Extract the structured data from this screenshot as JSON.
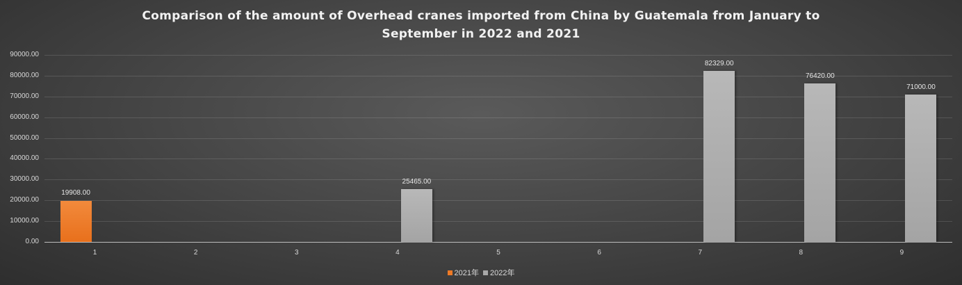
{
  "chart_data": {
    "type": "bar",
    "title": "Comparison of the amount of Overhead cranes imported from China by Guatemala from January to September in 2022 and 2021",
    "title_line1": "Comparison of the amount of Overhead cranes imported from China by Guatemala from January to",
    "title_line2": "September in 2022 and 2021",
    "categories": [
      "1",
      "2",
      "3",
      "4",
      "5",
      "6",
      "7",
      "8",
      "9"
    ],
    "series": [
      {
        "name": "2021年",
        "color": "#ee7a26",
        "values": [
          19908,
          null,
          null,
          null,
          null,
          null,
          null,
          null,
          null
        ]
      },
      {
        "name": "2022年",
        "color": "#a9a9a9",
        "values": [
          null,
          null,
          null,
          25465,
          null,
          null,
          82329,
          76420,
          71000
        ]
      }
    ],
    "data_labels": {
      "2021年": [
        "19908.00",
        "",
        "",
        "",
        "",
        "",
        "",
        "",
        ""
      ],
      "2022年": [
        "",
        "",
        "",
        "25465.00",
        "",
        "",
        "82329.00",
        "76420.00",
        "71000.00"
      ]
    },
    "xlabel": "",
    "ylabel": "",
    "ylim": [
      0,
      90000
    ],
    "yticks": [
      "0.00",
      "10000.00",
      "20000.00",
      "30000.00",
      "40000.00",
      "50000.00",
      "60000.00",
      "70000.00",
      "80000.00",
      "90000.00"
    ],
    "grid": true,
    "legend_position": "bottom"
  }
}
